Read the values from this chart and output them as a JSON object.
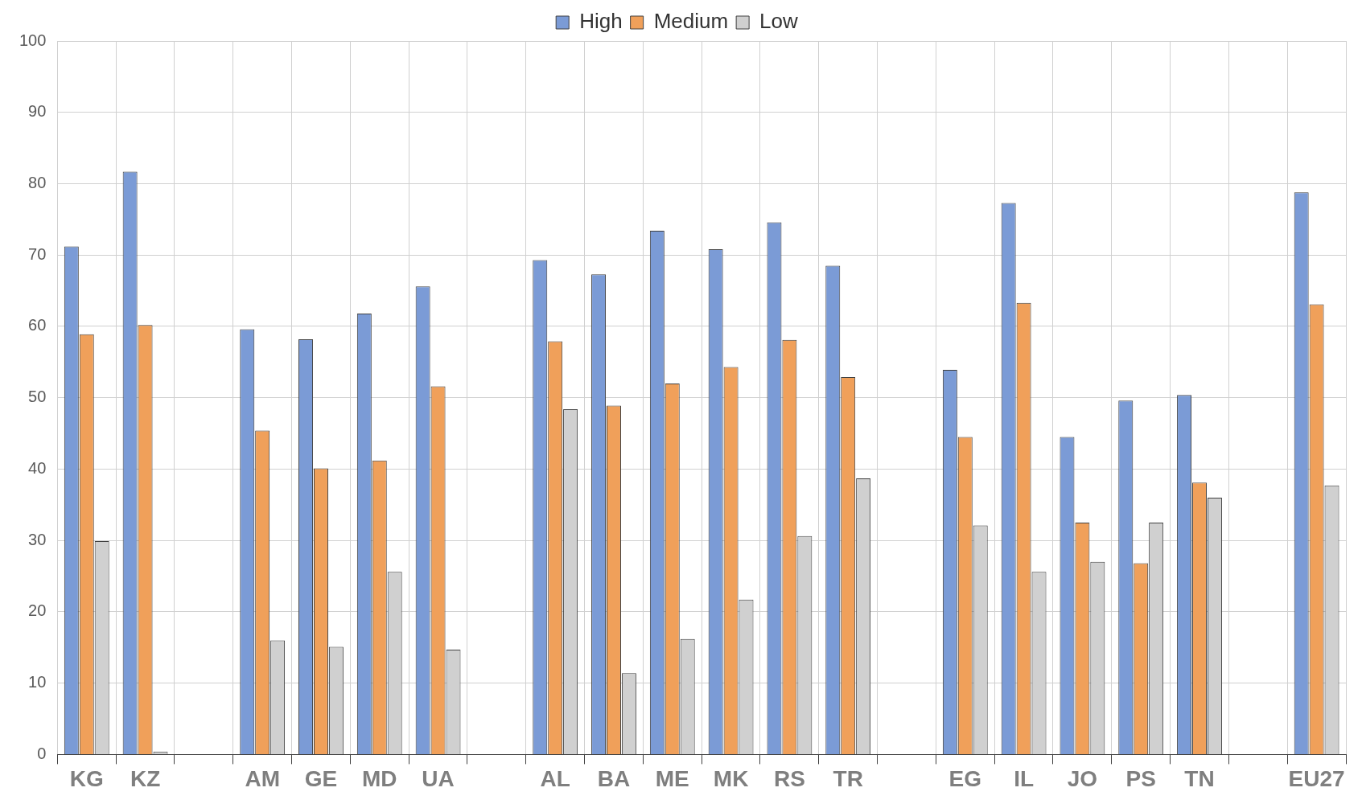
{
  "chart_data": {
    "type": "bar",
    "categories": [
      "KG",
      "KZ",
      null,
      "AM",
      "GE",
      "MD",
      "UA",
      null,
      "AL",
      "BA",
      "ME",
      "MK",
      "RS",
      "TR",
      null,
      "EG",
      "IL",
      "JO",
      "PS",
      "TN",
      null,
      "EU27"
    ],
    "series": [
      {
        "name": "High",
        "color": "#7b9bd6",
        "values": [
          71.2,
          81.7,
          null,
          59.6,
          58.2,
          61.8,
          65.6,
          null,
          69.3,
          67.3,
          73.4,
          70.8,
          74.6,
          68.5,
          null,
          53.9,
          77.3,
          44.5,
          49.6,
          50.4,
          null,
          78.8
        ]
      },
      {
        "name": "Medium",
        "color": "#f0a05a",
        "values": [
          58.9,
          60.2,
          null,
          45.4,
          40.1,
          41.2,
          51.6,
          null,
          57.9,
          48.9,
          52.0,
          54.3,
          58.1,
          52.9,
          null,
          44.5,
          63.3,
          32.5,
          26.8,
          38.1,
          null,
          63.1
        ]
      },
      {
        "name": "Low",
        "color": "#d0d0d0",
        "values": [
          29.9,
          0.4,
          null,
          16.0,
          15.1,
          25.6,
          14.7,
          null,
          48.4,
          11.4,
          16.2,
          21.7,
          30.6,
          38.7,
          null,
          32.1,
          25.6,
          27.0,
          32.5,
          36.0,
          null,
          37.7
        ]
      }
    ],
    "ylim": [
      0,
      100
    ],
    "yticks": [
      0,
      10,
      20,
      30,
      40,
      50,
      60,
      70,
      80,
      90,
      100
    ],
    "grid": true,
    "legend": "top"
  }
}
